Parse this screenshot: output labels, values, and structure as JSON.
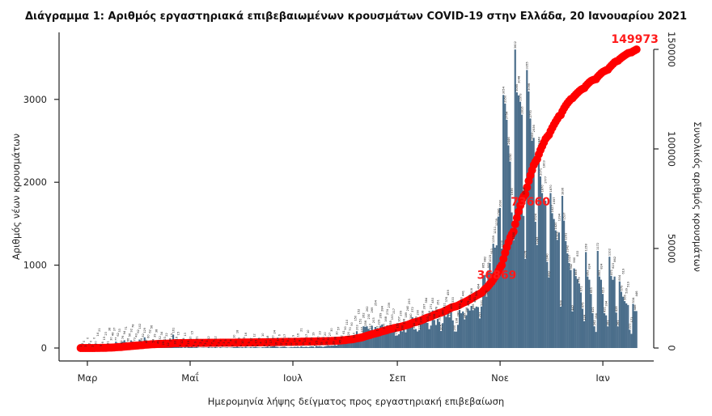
{
  "chart_data": {
    "type": "bar+line",
    "title": "Διάγραμμα 1: Αριθμός εργαστηριακά επιβεβαιωμένων κρουσμάτων COVID-19 στην Ελλάδα, 20 Ιανουαρίου 2021",
    "xlabel": "Ημερομηνία λήψης δείγματος προς εργαστηριακή επιβεβαίωση",
    "ylabel": "Αριθμός νέων κρουσμάτων",
    "y2label": "Συνολικός αριθμός κρουσμάτων",
    "x_start": "2020-02-26",
    "x_end": "2021-01-20",
    "x_ticks": [
      {
        "date": "2020-03-01",
        "label": "Μαρ"
      },
      {
        "date": "2020-05-01",
        "label": "Μαΐ"
      },
      {
        "date": "2020-07-01",
        "label": "Ιουλ"
      },
      {
        "date": "2020-09-01",
        "label": "Σεπ"
      },
      {
        "date": "2020-11-01",
        "label": "Νοε"
      },
      {
        "date": "2021-01-01",
        "label": "Ιαν"
      }
    ],
    "ylim": [
      0,
      3700
    ],
    "y_ticks": [
      "0",
      "1000",
      "2000",
      "3000"
    ],
    "y2lim": [
      0,
      155000
    ],
    "y2_ticks": [
      "0",
      "50000",
      "100000",
      "150000"
    ],
    "grid": false,
    "bar_color": "#4b6e8b",
    "line_color": "#ff0000",
    "series": [
      {
        "type": "bar",
        "values": [
          1,
          2,
          0,
          3,
          0,
          2,
          0,
          2,
          0,
          20,
          14,
          21,
          9,
          6,
          15,
          23,
          31,
          38,
          30,
          48,
          37,
          77,
          62,
          33,
          41,
          76,
          94,
          71,
          66,
          56,
          92,
          78,
          73,
          43,
          62,
          102,
          64,
          52,
          129,
          49,
          60,
          62,
          56,
          54,
          39,
          38,
          41,
          32,
          34,
          25,
          23,
          22,
          12,
          28,
          15,
          161,
          33,
          16,
          15,
          9,
          12,
          4,
          13,
          5,
          15,
          10,
          15,
          8,
          9,
          21,
          4,
          2,
          4,
          5,
          3,
          3,
          12,
          5,
          7,
          5,
          12,
          6,
          2,
          9,
          4,
          3,
          5,
          7,
          3,
          4,
          6,
          10,
          11,
          18,
          9,
          6,
          10,
          5,
          16,
          6,
          5,
          12,
          6,
          12,
          15,
          8,
          6,
          4,
          10,
          8,
          12,
          18,
          8,
          17,
          20,
          24,
          16,
          14,
          6,
          12,
          15,
          17,
          11,
          5,
          7,
          12,
          9,
          14,
          12,
          16,
          8,
          21,
          13,
          13,
          17,
          10,
          16,
          21,
          19,
          7,
          25,
          20,
          23,
          19,
          13,
          20,
          25,
          32,
          27,
          30,
          29,
          36,
          30,
          57,
          45,
          72,
          61,
          90,
          110,
          120,
          70,
          90,
          110,
          150,
          203,
          152,
          151,
          177,
          262,
          256,
          262,
          230,
          217,
          269,
          203,
          254,
          192,
          229,
          269,
          284,
          220,
          168,
          274,
          239,
          255,
          193,
          217,
          150,
          152,
          167,
          209,
          200,
          238,
          189,
          240,
          293,
          340,
          372,
          224,
          229,
          200,
          219,
          296,
          338,
          397,
          384,
          303,
          228,
          271,
          453,
          338,
          278,
          351,
          317,
          205,
          300,
          411,
          376,
          459,
          370,
          460,
          333,
          200,
          198,
          280,
          459,
          420,
          441,
          345,
          396,
          475,
          452,
          508,
          456,
          481,
          500,
          494,
          357,
          501,
          865,
          882,
          620,
          935,
          1025,
          911,
          1259,
          1211,
          1239,
          1586,
          1690,
          1200,
          3054,
          2950,
          2754,
          2446,
          2250,
          1636,
          1300,
          3602,
          3085,
          3048,
          2973,
          2816,
          1594,
          1076,
          3355,
          3096,
          2770,
          2502,
          2536,
          1524,
          1243,
          2448,
          2071,
          1870,
          1803,
          1777,
          1040,
          852,
          1870,
          1627,
          1557,
          1420,
          1305,
          1394,
          500,
          1836,
          1537,
          1291,
          1142,
          1027,
          942,
          442,
          960,
          868,
          833,
          779,
          671,
          475,
          324,
          1158,
          863,
          824,
          653,
          421,
          262,
          194,
          1172,
          863,
          824,
          653,
          421,
          394,
          261,
          1102,
          871,
          823,
          862,
          428,
          261,
          804,
          679,
          619,
          566,
          539,
          519,
          221,
          171,
          534,
          446,
          446
        ]
      },
      {
        "type": "line",
        "name": "cumulative",
        "labels": [
          {
            "date": "2020-10-31",
            "value": "36869"
          },
          {
            "date": "2020-11-20",
            "value": "73660"
          },
          {
            "date": "2021-01-20",
            "value": "149973"
          }
        ]
      }
    ]
  }
}
